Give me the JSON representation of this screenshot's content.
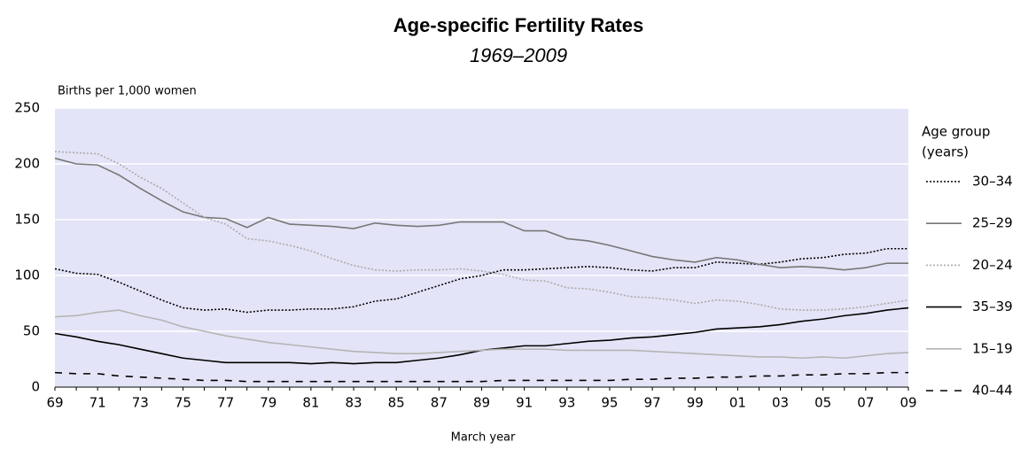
{
  "chart_data": {
    "type": "line",
    "title": "Age-specific Fertility Rates",
    "subtitle": "1969–2009",
    "y_label": "Births per 1,000 women",
    "x_label": "March year",
    "legend_title": [
      "Age group",
      "(years)"
    ],
    "categories": [
      "69",
      null,
      "71",
      null,
      "73",
      null,
      "75",
      null,
      "77",
      null,
      "79",
      null,
      "81",
      null,
      "83",
      null,
      "85",
      null,
      "87",
      null,
      "89",
      null,
      "91",
      null,
      "93",
      null,
      "95",
      null,
      "97",
      null,
      "99",
      null,
      "01",
      null,
      "03",
      null,
      "05",
      null,
      "07",
      null,
      "09"
    ],
    "ylim": [
      0,
      250
    ],
    "yticks": [
      0,
      50,
      100,
      150,
      200,
      250
    ],
    "grid": true,
    "background": "#e4e4f8",
    "series": [
      {
        "name": "30–34",
        "color": "#000000",
        "line_style": "dotted",
        "values": [
          106,
          102,
          101,
          94,
          86,
          78,
          71,
          69,
          70,
          67,
          69,
          69,
          70,
          70,
          72,
          77,
          79,
          85,
          91,
          97,
          100,
          105,
          105,
          106,
          107,
          108,
          107,
          105,
          104,
          107,
          107,
          112,
          111,
          110,
          112,
          115,
          116,
          119,
          120,
          124,
          124
        ]
      },
      {
        "name": "25–29",
        "color": "#777777",
        "line_style": "solid",
        "values": [
          205,
          200,
          199,
          190,
          178,
          167,
          157,
          152,
          151,
          143,
          152,
          146,
          145,
          144,
          142,
          147,
          145,
          144,
          145,
          148,
          148,
          148,
          140,
          140,
          133,
          131,
          127,
          122,
          117,
          114,
          112,
          116,
          114,
          110,
          107,
          108,
          107,
          105,
          107,
          111,
          111
        ]
      },
      {
        "name": "20–24",
        "color": "#aaaaaa",
        "line_style": "dotted",
        "values": [
          211,
          210,
          209,
          200,
          188,
          178,
          165,
          152,
          146,
          133,
          131,
          127,
          122,
          115,
          109,
          105,
          104,
          105,
          105,
          106,
          104,
          101,
          96,
          95,
          89,
          88,
          85,
          81,
          80,
          78,
          75,
          78,
          77,
          74,
          70,
          69,
          69,
          70,
          72,
          75,
          78
        ]
      },
      {
        "name": "35–39",
        "color": "#000000",
        "line_style": "solid",
        "values": [
          48,
          45,
          41,
          38,
          34,
          30,
          26,
          24,
          22,
          22,
          22,
          22,
          21,
          22,
          21,
          22,
          22,
          24,
          26,
          29,
          33,
          35,
          37,
          37,
          39,
          41,
          42,
          44,
          45,
          47,
          49,
          52,
          53,
          54,
          56,
          59,
          61,
          64,
          66,
          69,
          71
        ]
      },
      {
        "name": "15–19",
        "color": "#b4b4b4",
        "line_style": "solid",
        "values": [
          63,
          64,
          67,
          69,
          64,
          60,
          54,
          50,
          46,
          43,
          40,
          38,
          36,
          34,
          32,
          31,
          30,
          30,
          31,
          32,
          33,
          34,
          34,
          34,
          33,
          33,
          33,
          33,
          32,
          31,
          30,
          29,
          28,
          27,
          27,
          26,
          27,
          26,
          28,
          30,
          31
        ]
      },
      {
        "name": "40–44",
        "color": "#000000",
        "line_style": "dashed",
        "values": [
          13,
          12,
          12,
          10,
          9,
          8,
          7,
          6,
          6,
          5,
          5,
          5,
          5,
          5,
          5,
          5,
          5,
          5,
          5,
          5,
          5,
          6,
          6,
          6,
          6,
          6,
          6,
          7,
          7,
          8,
          8,
          9,
          9,
          10,
          10,
          11,
          11,
          12,
          12,
          13,
          13
        ]
      }
    ]
  }
}
